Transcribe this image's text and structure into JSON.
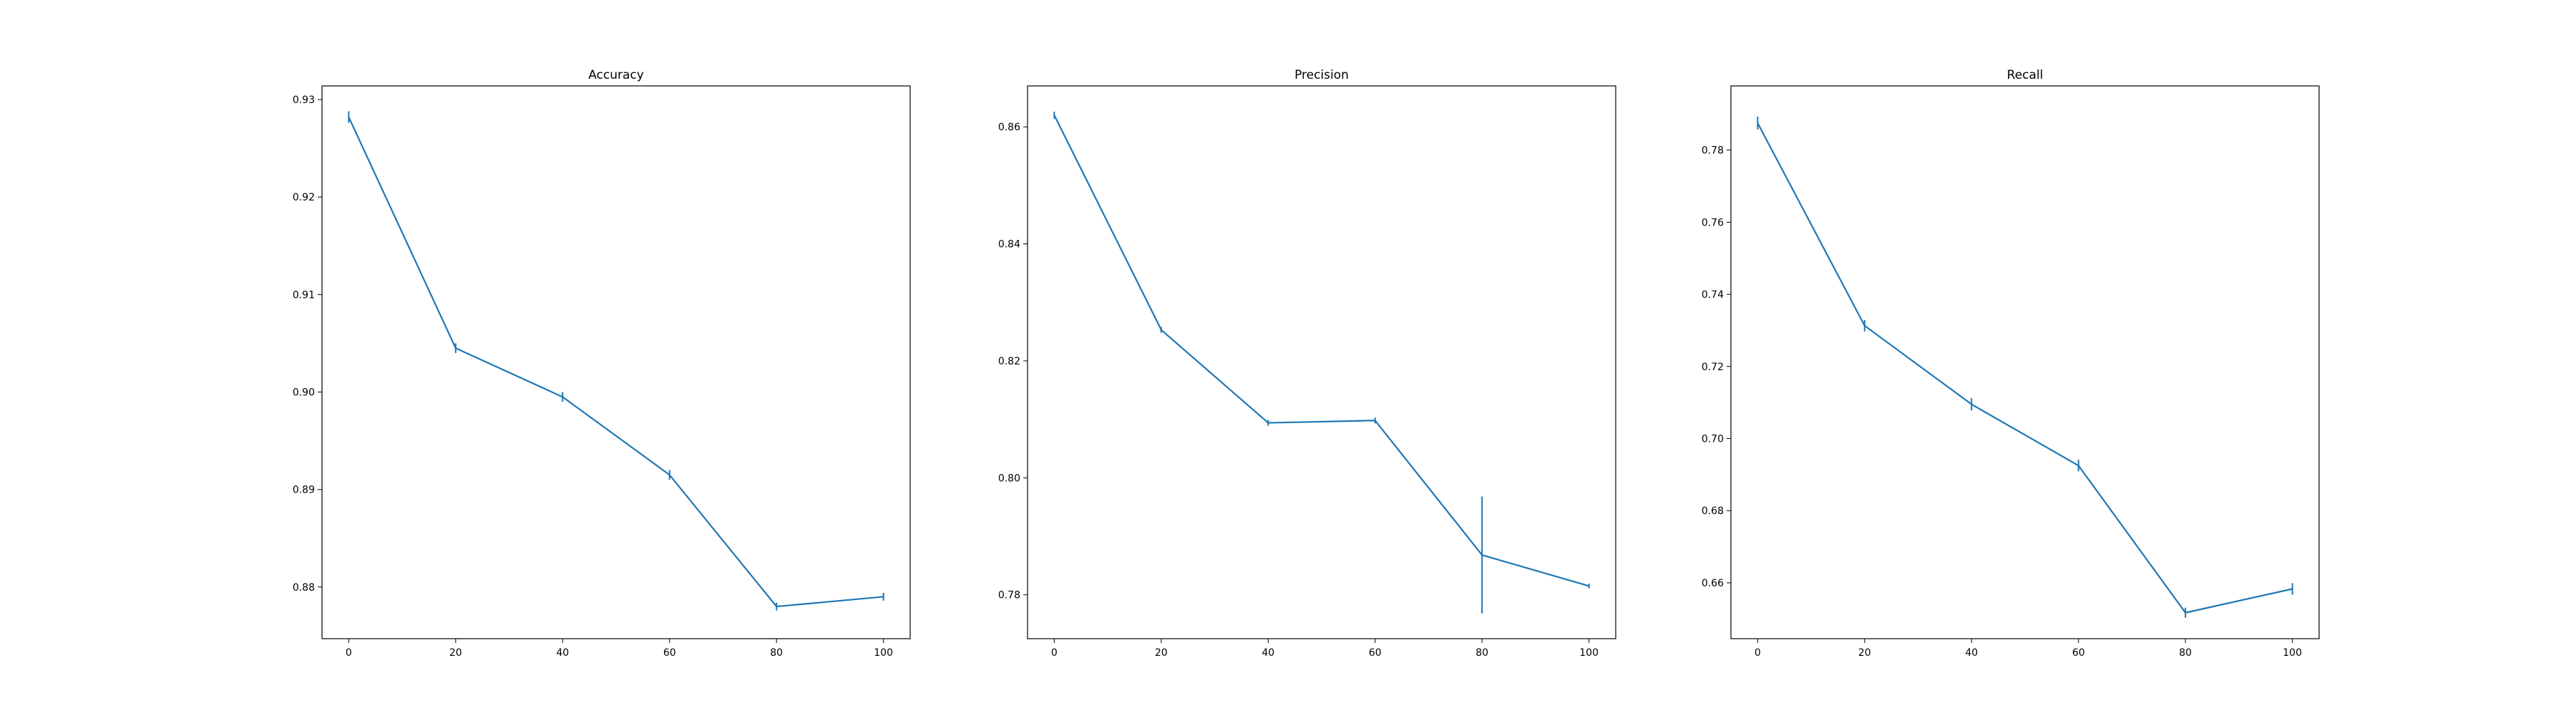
{
  "colors": {
    "line": "#1f77b4",
    "axes": "#000000",
    "background": "#ffffff"
  },
  "chart_data": [
    {
      "type": "line",
      "title": "Accuracy",
      "x": [
        0,
        20,
        40,
        60,
        80,
        100
      ],
      "y": [
        0.9282,
        0.9045,
        0.8995,
        0.8915,
        0.878,
        0.879
      ],
      "yerr": [
        0.0006,
        0.0005,
        0.0005,
        0.0005,
        0.0004,
        0.0004
      ],
      "xlim": [
        -5,
        105
      ],
      "ylim": [
        0.8747,
        0.9314
      ],
      "xticks": [
        0,
        20,
        40,
        60,
        80,
        100
      ],
      "yticks": [
        0.88,
        0.89,
        0.9,
        0.91,
        0.92,
        0.93
      ],
      "ytick_labels": [
        "0.88",
        "0.89",
        "0.90",
        "0.91",
        "0.92",
        "0.93"
      ],
      "grid": false
    },
    {
      "type": "line",
      "title": "Precision",
      "x": [
        0,
        20,
        40,
        60,
        80,
        100
      ],
      "y": [
        0.862,
        0.8253,
        0.8094,
        0.8098,
        0.7868,
        0.7815
      ],
      "yerr": [
        0.0006,
        0.0005,
        0.0005,
        0.0005,
        0.01,
        0.0004
      ],
      "xlim": [
        -5,
        105
      ],
      "ylim": [
        0.7725,
        0.867
      ],
      "xticks": [
        0,
        20,
        40,
        60,
        80,
        100
      ],
      "yticks": [
        0.78,
        0.8,
        0.82,
        0.84,
        0.86
      ],
      "ytick_labels": [
        "0.78",
        "0.80",
        "0.82",
        "0.84",
        "0.86"
      ],
      "grid": false
    },
    {
      "type": "line",
      "title": "Recall",
      "x": [
        0,
        20,
        40,
        60,
        80,
        100
      ],
      "y": [
        0.7875,
        0.7313,
        0.7095,
        0.6925,
        0.6517,
        0.6583
      ],
      "yerr": [
        0.0018,
        0.0016,
        0.0017,
        0.0016,
        0.0014,
        0.0016
      ],
      "xlim": [
        -5,
        105
      ],
      "ylim": [
        0.6445,
        0.7978
      ],
      "xticks": [
        0,
        20,
        40,
        60,
        80,
        100
      ],
      "yticks": [
        0.66,
        0.68,
        0.7,
        0.72,
        0.74,
        0.76,
        0.78
      ],
      "ytick_labels": [
        "0.66",
        "0.68",
        "0.70",
        "0.72",
        "0.74",
        "0.76",
        "0.78"
      ],
      "grid": false
    }
  ]
}
